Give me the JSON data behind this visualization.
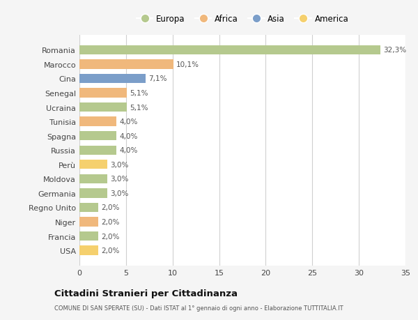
{
  "countries": [
    "Romania",
    "Marocco",
    "Cina",
    "Senegal",
    "Ucraina",
    "Tunisia",
    "Spagna",
    "Russia",
    "Perù",
    "Moldova",
    "Germania",
    "Regno Unito",
    "Niger",
    "Francia",
    "USA"
  ],
  "values": [
    32.3,
    10.1,
    7.1,
    5.1,
    5.1,
    4.0,
    4.0,
    4.0,
    3.0,
    3.0,
    3.0,
    2.0,
    2.0,
    2.0,
    2.0
  ],
  "labels": [
    "32,3%",
    "10,1%",
    "7,1%",
    "5,1%",
    "5,1%",
    "4,0%",
    "4,0%",
    "4,0%",
    "3,0%",
    "3,0%",
    "3,0%",
    "2,0%",
    "2,0%",
    "2,0%",
    "2,0%"
  ],
  "categories": [
    "Europa",
    "Africa",
    "Asia",
    "America"
  ],
  "bar_colors": [
    "#b5c98e",
    "#f0b87c",
    "#7b9ec9",
    "#f0b87c",
    "#b5c98e",
    "#f0b87c",
    "#b5c98e",
    "#b5c98e",
    "#f5d06e",
    "#b5c98e",
    "#b5c98e",
    "#b5c98e",
    "#f0b87c",
    "#b5c98e",
    "#f5d06e"
  ],
  "legend_colors": {
    "Europa": "#b5c98e",
    "Africa": "#f0b87c",
    "Asia": "#7b9ec9",
    "America": "#f5d06e"
  },
  "xlim": [
    0,
    35
  ],
  "xticks": [
    0,
    5,
    10,
    15,
    20,
    25,
    30,
    35
  ],
  "title": "Cittadini Stranieri per Cittadinanza",
  "subtitle": "COMUNE DI SAN SPERATE (SU) - Dati ISTAT al 1° gennaio di ogni anno - Elaborazione TUTTITALIA.IT",
  "background_color": "#f5f5f5",
  "plot_bg_color": "#ffffff",
  "grid_color": "#d0d0d0"
}
